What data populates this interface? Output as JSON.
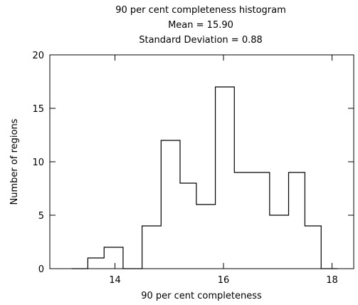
{
  "chart_data": {
    "type": "bar",
    "subtype": "step-histogram",
    "title": "90 per cent completeness histogram",
    "subtitle_lines": [
      "Mean = 15.90",
      "Standard Deviation =  0.88"
    ],
    "xlabel": "90 per cent completeness",
    "ylabel": "Number of regions",
    "xlim": [
      12.8,
      18.4
    ],
    "ylim": [
      0,
      20
    ],
    "x_ticks": [
      14,
      16,
      18
    ],
    "y_ticks": [
      0,
      5,
      10,
      15,
      20
    ],
    "grid": false,
    "legend": "none",
    "bins": [
      {
        "x0": 13.2,
        "x1": 13.5,
        "count": 0
      },
      {
        "x0": 13.5,
        "x1": 13.8,
        "count": 1
      },
      {
        "x0": 13.8,
        "x1": 14.15,
        "count": 2
      },
      {
        "x0": 14.15,
        "x1": 14.5,
        "count": 0
      },
      {
        "x0": 14.5,
        "x1": 14.85,
        "count": 4
      },
      {
        "x0": 14.85,
        "x1": 15.2,
        "count": 12
      },
      {
        "x0": 15.2,
        "x1": 15.5,
        "count": 8
      },
      {
        "x0": 15.5,
        "x1": 15.85,
        "count": 6
      },
      {
        "x0": 15.85,
        "x1": 16.2,
        "count": 17
      },
      {
        "x0": 16.2,
        "x1": 16.85,
        "count": 9
      },
      {
        "x0": 16.85,
        "x1": 17.2,
        "count": 5
      },
      {
        "x0": 17.2,
        "x1": 17.5,
        "count": 9
      },
      {
        "x0": 17.5,
        "x1": 17.8,
        "count": 4
      },
      {
        "x0": 17.8,
        "x1": 18.1,
        "count": 0
      }
    ]
  }
}
